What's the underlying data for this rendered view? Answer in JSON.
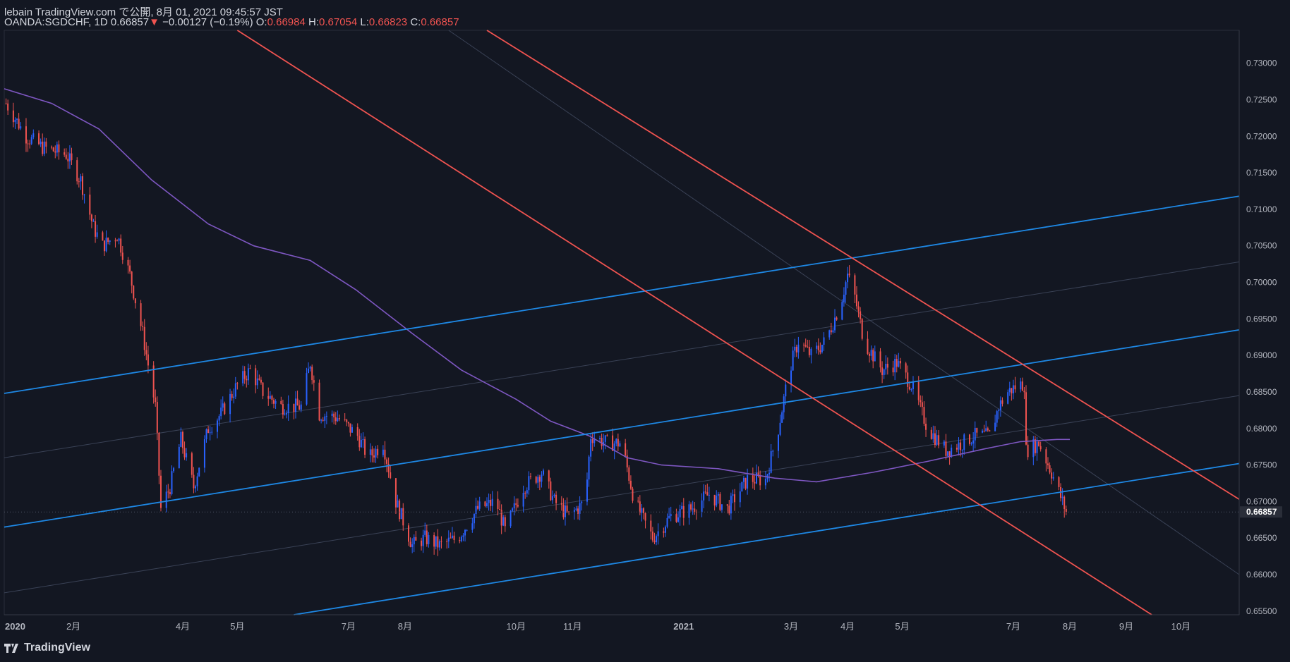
{
  "header": {
    "published": "lebain TradingView.com で公開, 8月 01, 2021 09:45:57 JST",
    "symbol": "OANDA:SGDCHF, 1D",
    "last": "0.66857",
    "arrow": "▼",
    "change": "−0.00127 (−0.19%)",
    "o_label": "O:",
    "o": "0.66984",
    "h_label": "H:",
    "h": "0.67054",
    "l_label": "L:",
    "l": "0.66823",
    "c_label": "C:",
    "c": "0.66857"
  },
  "brand": {
    "name": "TradingView",
    "icon": "tradingview-logo-icon"
  },
  "colors": {
    "background": "#131722",
    "up": "#2962ff",
    "down": "#ef5350",
    "ma": "#7e57c2",
    "channel_blue": "#1e88e5",
    "channel_red": "#ef5350"
  },
  "chart_data": {
    "type": "candlestick",
    "symbol": "OANDA:SGDCHF",
    "timeframe": "1D",
    "ylim": [
      0.6545,
      0.7345
    ],
    "y_ticks": [
      "0.73000",
      "0.72500",
      "0.72000",
      "0.71500",
      "0.71000",
      "0.70500",
      "0.70000",
      "0.69500",
      "0.69000",
      "0.68500",
      "0.68000",
      "0.67500",
      "0.67000",
      "0.66500",
      "0.66000",
      "0.65500"
    ],
    "last_price_label": "0.66857",
    "x_ticks": [
      {
        "date": "2019-12-31",
        "label": "2020"
      },
      {
        "date": "2020-02-01",
        "label": "2月"
      },
      {
        "date": "2020-04-01",
        "label": "4月"
      },
      {
        "date": "2020-05-01",
        "label": "5月"
      },
      {
        "date": "2020-07-01",
        "label": "7月"
      },
      {
        "date": "2020-08-01",
        "label": "8月"
      },
      {
        "date": "2020-10-01",
        "label": "10月"
      },
      {
        "date": "2020-11-01",
        "label": "11月"
      },
      {
        "date": "2021-01-01",
        "label": "2021"
      },
      {
        "date": "2021-03-01",
        "label": "3月"
      },
      {
        "date": "2021-04-01",
        "label": "4月"
      },
      {
        "date": "2021-05-01",
        "label": "5月"
      },
      {
        "date": "2021-07-01",
        "label": "7月"
      },
      {
        "date": "2021-08-01",
        "label": "8月"
      },
      {
        "date": "2021-09-01",
        "label": "9月"
      },
      {
        "date": "2021-10-01",
        "label": "10月"
      }
    ],
    "xlim": [
      "2019-12-25",
      "2021-11-02"
    ],
    "price_path": [
      [
        "2019-12-26",
        0.7245
      ],
      [
        "2020-01-06",
        0.72
      ],
      [
        "2020-01-15",
        0.7185
      ],
      [
        "2020-01-28",
        0.7175
      ],
      [
        "2020-02-05",
        0.714
      ],
      [
        "2020-02-12",
        0.7075
      ],
      [
        "2020-02-17",
        0.705
      ],
      [
        "2020-02-25",
        0.7065
      ],
      [
        "2020-03-03",
        0.701
      ],
      [
        "2020-03-10",
        0.693
      ],
      [
        "2020-03-17",
        0.683
      ],
      [
        "2020-03-20",
        0.669
      ],
      [
        "2020-03-25",
        0.672
      ],
      [
        "2020-03-31",
        0.6785
      ],
      [
        "2020-04-07",
        0.672
      ],
      [
        "2020-04-15",
        0.68
      ],
      [
        "2020-04-22",
        0.682
      ],
      [
        "2020-05-01",
        0.686
      ],
      [
        "2020-05-08",
        0.688
      ],
      [
        "2020-05-15",
        0.685
      ],
      [
        "2020-05-25",
        0.683
      ],
      [
        "2020-06-05",
        0.683
      ],
      [
        "2020-06-10",
        0.689
      ],
      [
        "2020-06-15",
        0.682
      ],
      [
        "2020-06-25",
        0.6815
      ],
      [
        "2020-07-06",
        0.679
      ],
      [
        "2020-07-12",
        0.676
      ],
      [
        "2020-07-20",
        0.678
      ],
      [
        "2020-07-27",
        0.67
      ],
      [
        "2020-08-05",
        0.664
      ],
      [
        "2020-08-12",
        0.665
      ],
      [
        "2020-08-20",
        0.664
      ],
      [
        "2020-08-30",
        0.665
      ],
      [
        "2020-09-10",
        0.669
      ],
      [
        "2020-09-20",
        0.67
      ],
      [
        "2020-09-25",
        0.666
      ],
      [
        "2020-10-05",
        0.672
      ],
      [
        "2020-10-15",
        0.674
      ],
      [
        "2020-10-22",
        0.67
      ],
      [
        "2020-10-30",
        0.668
      ],
      [
        "2020-11-08",
        0.67
      ],
      [
        "2020-11-11",
        0.679
      ],
      [
        "2020-11-20",
        0.678
      ],
      [
        "2020-11-28",
        0.678
      ],
      [
        "2020-12-05",
        0.67
      ],
      [
        "2020-12-15",
        0.665
      ],
      [
        "2020-12-25",
        0.668
      ],
      [
        "2021-01-05",
        0.669
      ],
      [
        "2021-01-15",
        0.671
      ],
      [
        "2021-01-25",
        0.669
      ],
      [
        "2021-02-05",
        0.673
      ],
      [
        "2021-02-15",
        0.673
      ],
      [
        "2021-02-22",
        0.68
      ],
      [
        "2021-02-28",
        0.688
      ],
      [
        "2021-03-05",
        0.692
      ],
      [
        "2021-03-12",
        0.69
      ],
      [
        "2021-03-20",
        0.692
      ],
      [
        "2021-03-28",
        0.697
      ],
      [
        "2021-04-01",
        0.701
      ],
      [
        "2021-04-05",
        0.698
      ],
      [
        "2021-04-10",
        0.692
      ],
      [
        "2021-04-20",
        0.688
      ],
      [
        "2021-04-28",
        0.689
      ],
      [
        "2021-05-06",
        0.686
      ],
      [
        "2021-05-15",
        0.68
      ],
      [
        "2021-05-25",
        0.677
      ],
      [
        "2021-06-03",
        0.678
      ],
      [
        "2021-06-10",
        0.679
      ],
      [
        "2021-06-18",
        0.679
      ],
      [
        "2021-06-23",
        0.683
      ],
      [
        "2021-06-28",
        0.685
      ],
      [
        "2021-07-04",
        0.686
      ],
      [
        "2021-07-07",
        0.686
      ],
      [
        "2021-07-08",
        0.677
      ],
      [
        "2021-07-15",
        0.678
      ],
      [
        "2021-07-22",
        0.674
      ],
      [
        "2021-07-30",
        0.6686
      ]
    ],
    "ma_path": [
      [
        "2019-12-25",
        0.7265
      ],
      [
        "2020-01-20",
        0.7245
      ],
      [
        "2020-02-15",
        0.721
      ],
      [
        "2020-03-15",
        0.714
      ],
      [
        "2020-04-15",
        0.708
      ],
      [
        "2020-05-10",
        0.705
      ],
      [
        "2020-06-10",
        0.703
      ],
      [
        "2020-07-05",
        0.699
      ],
      [
        "2020-08-05",
        0.693
      ],
      [
        "2020-09-01",
        0.688
      ],
      [
        "2020-10-01",
        0.684
      ],
      [
        "2020-10-20",
        0.681
      ],
      [
        "2020-11-10",
        0.679
      ],
      [
        "2020-12-01",
        0.676
      ],
      [
        "2020-12-20",
        0.675
      ],
      [
        "2021-01-20",
        0.6745
      ],
      [
        "2021-02-20",
        0.6732
      ],
      [
        "2021-03-15",
        0.6727
      ],
      [
        "2021-04-15",
        0.674
      ],
      [
        "2021-05-15",
        0.6755
      ],
      [
        "2021-06-15",
        0.6772
      ],
      [
        "2021-07-05",
        0.6782
      ],
      [
        "2021-07-25",
        0.6785
      ],
      [
        "2021-08-01",
        0.6785
      ]
    ],
    "trendlines": [
      {
        "color": "blue",
        "from": [
          "2019-12-25",
          0.6848
        ],
        "to": [
          "2021-11-02",
          0.7118
        ]
      },
      {
        "color": "blue",
        "from": [
          "2019-12-25",
          0.6665
        ],
        "to": [
          "2021-11-02",
          0.6935
        ]
      },
      {
        "color": "blue",
        "from": [
          "2020-06-01",
          0.6545
        ],
        "to": [
          "2021-11-02",
          0.6752
        ]
      },
      {
        "color": "red",
        "from": [
          "2020-05-01",
          0.7345
        ],
        "to": [
          "2021-09-15",
          0.6545
        ]
      },
      {
        "color": "red",
        "from": [
          "2020-09-15",
          0.7345
        ],
        "to": [
          "2021-11-02",
          0.6703
        ]
      }
    ],
    "faint_lines": [
      {
        "from": [
          "2019-12-25",
          0.676
        ],
        "to": [
          "2021-11-02",
          0.7028
        ]
      },
      {
        "from": [
          "2019-12-25",
          0.6575
        ],
        "to": [
          "2021-11-02",
          0.6845
        ]
      },
      {
        "from": [
          "2020-08-25",
          0.7345
        ],
        "to": [
          "2021-11-02",
          0.66
        ]
      }
    ]
  }
}
